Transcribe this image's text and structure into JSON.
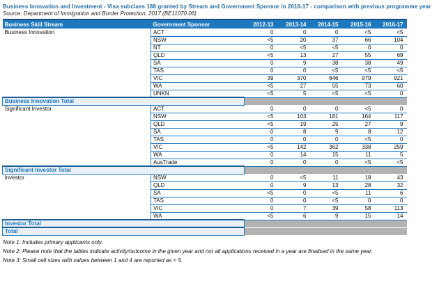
{
  "title": "Business Innovation and Investment - Visa subclass 188 granted by Stream and Government Sponsor in 2016-17 - comparison with previous programme year",
  "source": "Source: Department of Immigration and Border Protection, 2017 (BE11070.06)",
  "table": {
    "columns": [
      "Business Skill Stream",
      "Government Sponsor",
      "2012-13",
      "2013-14",
      "2014-15",
      "2015-16",
      "2016-17"
    ],
    "groups": [
      {
        "stream": "Business Innovation",
        "total_label": "Business Innovation Total",
        "rows": [
          {
            "sponsor": "ACT",
            "values": [
              "0",
              "0",
              "0",
              "<5",
              "<5"
            ]
          },
          {
            "sponsor": "NSW",
            "values": [
              "<5",
              "20",
              "37",
              "66",
              "104"
            ]
          },
          {
            "sponsor": "NT",
            "values": [
              "0",
              "<5",
              "<5",
              "0",
              "0"
            ]
          },
          {
            "sponsor": "QLD",
            "values": [
              "<5",
              "13",
              "27",
              "55",
              "69"
            ]
          },
          {
            "sponsor": "SA",
            "values": [
              "0",
              "9",
              "38",
              "38",
              "49"
            ]
          },
          {
            "sponsor": "TAS",
            "values": [
              "0",
              "0",
              "<5",
              "<5",
              "<5"
            ]
          },
          {
            "sponsor": "VIC",
            "values": [
              "39",
              "370",
              "646",
              "979",
              "921"
            ]
          },
          {
            "sponsor": "WA",
            "values": [
              "<5",
              "27",
              "55",
              "73",
              "60"
            ]
          },
          {
            "sponsor": "UNKN",
            "values": [
              "<5",
              "5",
              "<5",
              "<5",
              "0"
            ]
          }
        ]
      },
      {
        "stream": "Significant Investor",
        "total_label": "Significant Investor Total",
        "rows": [
          {
            "sponsor": "ACT",
            "values": [
              "0",
              "0",
              "0",
              "<5",
              "0"
            ]
          },
          {
            "sponsor": "NSW",
            "values": [
              "<5",
              "103",
              "181",
              "164",
              "117"
            ]
          },
          {
            "sponsor": "QLD",
            "values": [
              "<5",
              "19",
              "25",
              "27",
              "9"
            ]
          },
          {
            "sponsor": "SA",
            "values": [
              "0",
              "8",
              "9",
              "8",
              "12"
            ]
          },
          {
            "sponsor": "TAS",
            "values": [
              "0",
              "0",
              "0",
              "<5",
              "0"
            ]
          },
          {
            "sponsor": "VIC",
            "values": [
              "<5",
              "142",
              "362",
              "338",
              "259"
            ]
          },
          {
            "sponsor": "WA",
            "values": [
              "0",
              "14",
              "15",
              "11",
              "5"
            ]
          },
          {
            "sponsor": "AusTrade",
            "values": [
              "0",
              "0",
              "0",
              "<5",
              "<5"
            ]
          }
        ]
      },
      {
        "stream": "Investor",
        "total_label": "Investor Total",
        "rows": [
          {
            "sponsor": "NSW",
            "values": [
              "0",
              "<5",
              "11",
              "18",
              "43"
            ]
          },
          {
            "sponsor": "QLD",
            "values": [
              "0",
              "9",
              "13",
              "28",
              "32"
            ]
          },
          {
            "sponsor": "SA",
            "values": [
              "<5",
              "0",
              "<5",
              "11",
              "6"
            ]
          },
          {
            "sponsor": "TAS",
            "values": [
              "0",
              "0",
              "<5",
              "0",
              "0"
            ]
          },
          {
            "sponsor": "VIC",
            "values": [
              "0",
              "7",
              "39",
              "58",
              "113"
            ]
          },
          {
            "sponsor": "WA",
            "values": [
              "<5",
              "6",
              "9",
              "15",
              "14"
            ]
          }
        ]
      }
    ],
    "grand_total_label": "Total"
  },
  "notes": [
    "Note 1: Includes primary applicants only.",
    "Note 2: Please note that the tables indicate activity/outcome in the given year and not all applications received in a year are finalised in the same year.",
    "Note 3: Small cell sizes with values between 1 and 4 are reported as < 5."
  ],
  "colors": {
    "header_bg": "#1E78BE",
    "header_text": "#FFFFFF",
    "row_line": "#1E78BE",
    "total_bg": "#E9EFF6",
    "total_text": "#1E78BE",
    "total_border": "#1A5E94",
    "gray_cell": "#B2B2B2",
    "title_text": "#1E6CA8"
  }
}
